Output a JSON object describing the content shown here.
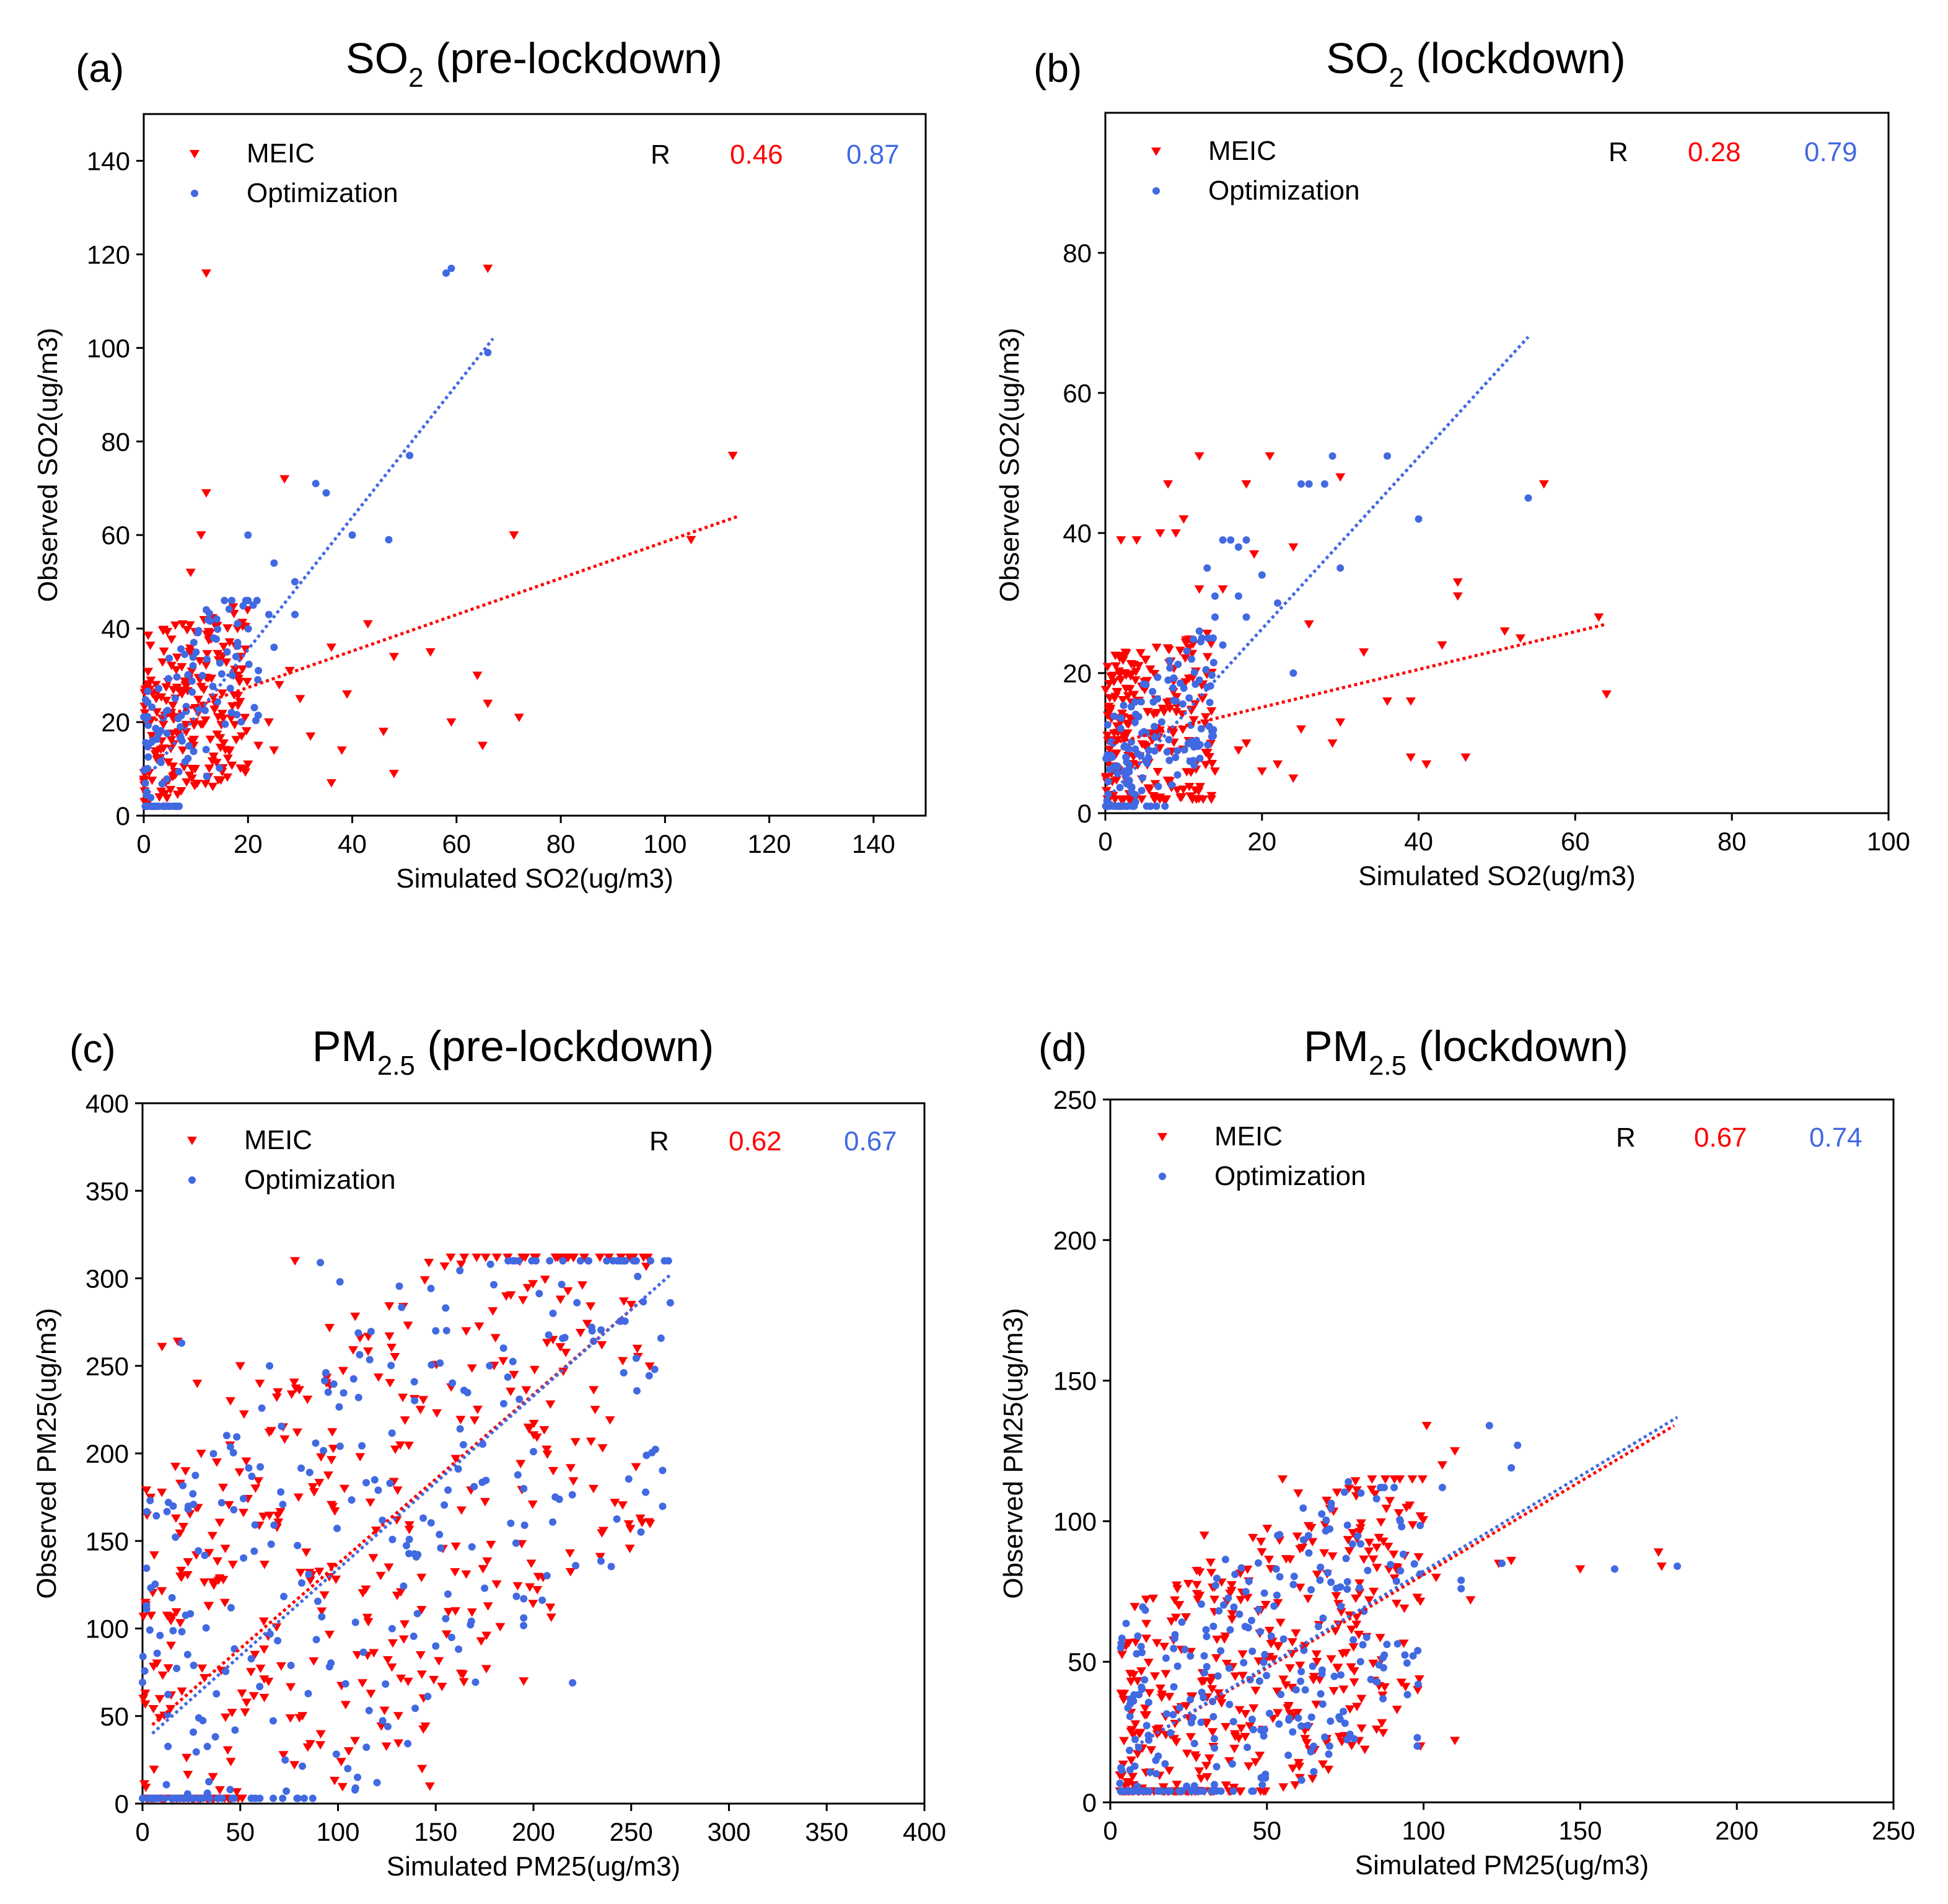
{
  "colors": {
    "meic": "#ff0000",
    "optimization": "#4169e1",
    "axes": "#000000",
    "background": "#ffffff"
  },
  "chart_data": [
    {
      "type": "scatter",
      "panel_label": "(a)",
      "title": {
        "main": "SO",
        "sub": "2",
        "suffix": " (pre-lockdown)"
      },
      "xlabel": "Simulated SO2(ug/m3)",
      "ylabel": "Observed SO2(ug/m3)",
      "xlim": [
        0,
        150
      ],
      "ylim": [
        0,
        150
      ],
      "xticks": [
        0,
        20,
        40,
        60,
        80,
        100,
        120,
        140
      ],
      "yticks": [
        0,
        20,
        40,
        60,
        80,
        100,
        120,
        140
      ],
      "legend_position": "top-left",
      "stats": {
        "label": "R",
        "meic": "0.46",
        "optimization": "0.87"
      },
      "series": [
        {
          "name": "MEIC",
          "marker": "triangle-down",
          "color": "#ff0000",
          "fit": [
            [
              1,
              20
            ],
            [
              114,
              64
            ]
          ],
          "cluster": {
            "x": [
              0,
              20
            ],
            "y": [
              3,
              45
            ],
            "n": 220,
            "seed": 11
          },
          "points": [
            [
              12,
              116
            ],
            [
              66,
              117
            ],
            [
              27,
              72
            ],
            [
              12,
              69
            ],
            [
              11,
              60
            ],
            [
              9,
              52
            ],
            [
              105,
              59
            ],
            [
              113,
              77
            ],
            [
              71,
              60
            ],
            [
              36,
              36
            ],
            [
              28,
              31
            ],
            [
              30,
              25
            ],
            [
              24,
              20
            ],
            [
              32,
              17
            ],
            [
              55,
              35
            ],
            [
              48,
              34
            ],
            [
              43,
              41
            ],
            [
              39,
              26
            ],
            [
              46,
              18
            ],
            [
              59,
              20
            ],
            [
              64,
              30
            ],
            [
              66,
              24
            ],
            [
              65,
              15
            ],
            [
              72,
              21
            ],
            [
              48,
              9
            ],
            [
              36,
              7
            ],
            [
              22,
              15
            ],
            [
              26,
              28
            ],
            [
              18,
              40
            ],
            [
              38,
              14
            ],
            [
              25,
              14
            ],
            [
              20,
              11
            ]
          ]
        },
        {
          "name": "Optimization",
          "marker": "circle",
          "color": "#4169e1",
          "fit": [
            [
              2,
              10
            ],
            [
              67,
              102
            ]
          ],
          "cluster": {
            "x": [
              0,
              22
            ],
            "y": [
              2,
              46
            ],
            "n": 120,
            "seed": 23
          },
          "points": [
            [
              59,
              117
            ],
            [
              58,
              116
            ],
            [
              66,
              99
            ],
            [
              51,
              77
            ],
            [
              33,
              71
            ],
            [
              35,
              69
            ],
            [
              40,
              60
            ],
            [
              47,
              59
            ],
            [
              20,
              60
            ],
            [
              25,
              54
            ],
            [
              29,
              50
            ],
            [
              29,
              43
            ],
            [
              21,
              45
            ],
            [
              20,
              46
            ],
            [
              25,
              36
            ],
            [
              22,
              31
            ],
            [
              18,
              37
            ],
            [
              16,
              35
            ],
            [
              14,
              42
            ],
            [
              12,
              44
            ],
            [
              17,
              30
            ],
            [
              24,
              43
            ]
          ]
        }
      ]
    },
    {
      "type": "scatter",
      "panel_label": "(b)",
      "title": {
        "main": "SO",
        "sub": "2",
        "suffix": " (lockdown)"
      },
      "xlabel": "Simulated SO2(ug/m3)",
      "ylabel": "Observed SO2(ug/m3)",
      "xlim": [
        0,
        100
      ],
      "ylim": [
        0,
        100
      ],
      "xticks": [
        0,
        20,
        40,
        60,
        80,
        100
      ],
      "yticks": [
        0,
        20,
        40,
        60,
        80
      ],
      "legend_position": "top-left",
      "stats": {
        "label": "R",
        "meic": "0.28",
        "optimization": "0.79"
      },
      "series": [
        {
          "name": "MEIC",
          "marker": "triangle-down",
          "color": "#ff0000",
          "fit": [
            [
              1,
              10
            ],
            [
              64,
              27
            ]
          ],
          "cluster": {
            "x": [
              0,
              14
            ],
            "y": [
              2,
              30
            ],
            "n": 230,
            "seed": 37
          },
          "points": [
            [
              21,
              51
            ],
            [
              12,
              51
            ],
            [
              18,
              47
            ],
            [
              8,
              47
            ],
            [
              56,
              47
            ],
            [
              30,
              48
            ],
            [
              2,
              39
            ],
            [
              4,
              39
            ],
            [
              7,
              40
            ],
            [
              9,
              40
            ],
            [
              10,
              42
            ],
            [
              24,
              38
            ],
            [
              19,
              37
            ],
            [
              12,
              32
            ],
            [
              15,
              32
            ],
            [
              45,
              33
            ],
            [
              45,
              31
            ],
            [
              26,
              27
            ],
            [
              33,
              23
            ],
            [
              51,
              26
            ],
            [
              43,
              24
            ],
            [
              53,
              25
            ],
            [
              63,
              28
            ],
            [
              64,
              17
            ],
            [
              36,
              16
            ],
            [
              39,
              16
            ],
            [
              30,
              13
            ],
            [
              29,
              10
            ],
            [
              25,
              12
            ],
            [
              18,
              10
            ],
            [
              22,
              7
            ],
            [
              39,
              8
            ],
            [
              41,
              7
            ],
            [
              46,
              8
            ],
            [
              24,
              5
            ],
            [
              14,
              6
            ],
            [
              20,
              6
            ],
            [
              17,
              9
            ]
          ]
        },
        {
          "name": "Optimization",
          "marker": "circle",
          "color": "#4169e1",
          "fit": [
            [
              1,
              3
            ],
            [
              54,
              68
            ]
          ],
          "cluster": {
            "x": [
              0,
              14
            ],
            "y": [
              1,
              25
            ],
            "n": 150,
            "seed": 41
          },
          "points": [
            [
              36,
              51
            ],
            [
              29,
              51
            ],
            [
              26,
              47
            ],
            [
              25,
              47
            ],
            [
              28,
              47
            ],
            [
              15,
              39
            ],
            [
              16,
              39
            ],
            [
              17,
              38
            ],
            [
              18,
              39
            ],
            [
              40,
              42
            ],
            [
              54,
              45
            ],
            [
              30,
              35
            ],
            [
              20,
              34
            ],
            [
              22,
              30
            ],
            [
              14,
              31
            ],
            [
              13,
              35
            ],
            [
              12,
              26
            ],
            [
              24,
              20
            ],
            [
              18,
              28
            ],
            [
              17,
              31
            ],
            [
              14,
              28
            ],
            [
              11,
              22
            ],
            [
              15,
              24
            ],
            [
              13,
              18
            ],
            [
              12,
              19
            ],
            [
              9,
              16
            ]
          ]
        }
      ]
    },
    {
      "type": "scatter",
      "panel_label": "(c)",
      "title": {
        "main": "PM",
        "sub": "2.5",
        "suffix": " (pre-lockdown)"
      },
      "xlabel": "Simulated PM25(ug/m3)",
      "ylabel": "Observed PM25(ug/m3)",
      "xlim": [
        0,
        400
      ],
      "ylim": [
        0,
        400
      ],
      "xticks": [
        0,
        50,
        100,
        150,
        200,
        250,
        300,
        350,
        400
      ],
      "yticks": [
        0,
        50,
        100,
        150,
        200,
        250,
        300,
        350,
        400
      ],
      "legend_position": "top-left",
      "stats": {
        "label": "R",
        "meic": "0.62",
        "optimization": "0.67"
      },
      "series": [
        {
          "name": "MEIC",
          "marker": "triangle-down",
          "color": "#ff0000",
          "fit": [
            [
              5,
              45
            ],
            [
              255,
              287
            ]
          ],
          "cluster": {
            "x": [
              0,
              260
            ],
            "y": [
              3,
              312
            ],
            "n": 420,
            "seed": 53
          },
          "points": [
            [
              10,
              261
            ],
            [
              18,
              264
            ],
            [
              6,
              142
            ],
            [
              195,
              70
            ],
            [
              147,
              10
            ],
            [
              143,
              20
            ],
            [
              78,
              310
            ],
            [
              163,
              308
            ],
            [
              250,
              285
            ],
            [
              235,
              262
            ],
            [
              30,
              200
            ],
            [
              22,
              190
            ],
            [
              38,
              195
            ],
            [
              50,
              250
            ],
            [
              60,
              240
            ],
            [
              45,
              230
            ],
            [
              28,
              240
            ],
            [
              190,
              245
            ],
            [
              210,
              265
            ]
          ]
        },
        {
          "name": "Optimization",
          "marker": "circle",
          "color": "#4169e1",
          "fit": [
            [
              5,
              40
            ],
            [
              270,
              302
            ]
          ],
          "cluster": {
            "x": [
              0,
              270
            ],
            "y": [
              3,
              310
            ],
            "n": 300,
            "seed": 67
          },
          "points": [
            [
              20,
              263
            ],
            [
              91,
              309
            ],
            [
              101,
              298
            ],
            [
              178,
              308
            ],
            [
              220,
              69
            ],
            [
              270,
              286
            ],
            [
              262,
              248
            ],
            [
              200,
              201
            ],
            [
              195,
              117
            ],
            [
              195,
              106
            ],
            [
              120,
              12
            ],
            [
              110,
              15
            ],
            [
              105,
              20
            ],
            [
              150,
              90
            ],
            [
              175,
              123
            ],
            [
              65,
              250
            ],
            [
              95,
              235
            ],
            [
              150,
              270
            ],
            [
              210,
              280
            ],
            [
              230,
              270
            ]
          ]
        }
      ]
    },
    {
      "type": "scatter",
      "panel_label": "(d)",
      "title": {
        "main": "PM",
        "sub": "2.5",
        "suffix": " (lockdown)"
      },
      "xlabel": "Simulated PM25(ug/m3)",
      "ylabel": "Observed PM25(ug/m3)",
      "xlim": [
        0,
        250
      ],
      "ylim": [
        0,
        250
      ],
      "xticks": [
        0,
        50,
        100,
        150,
        200,
        250
      ],
      "yticks": [
        0,
        50,
        100,
        150,
        200,
        250
      ],
      "legend_position": "top-left",
      "stats": {
        "label": "R",
        "meic": "0.67",
        "optimization": "0.74"
      },
      "series": [
        {
          "name": "MEIC",
          "marker": "triangle-down",
          "color": "#ff0000",
          "fit": [
            [
              8,
              20
            ],
            [
              180,
              134
            ]
          ],
          "cluster": {
            "x": [
              3,
              100
            ],
            "y": [
              4,
              115
            ],
            "n": 420,
            "seed": 79
          },
          "points": [
            [
              101,
              134
            ],
            [
              110,
              125
            ],
            [
              106,
              120
            ],
            [
              124,
              85
            ],
            [
              128,
              86
            ],
            [
              150,
              83
            ],
            [
              175,
              89
            ],
            [
              176,
              84
            ],
            [
              110,
              22
            ],
            [
              99,
              20
            ],
            [
              85,
              26
            ],
            [
              55,
              115
            ],
            [
              60,
              110
            ],
            [
              30,
              95
            ],
            [
              115,
              72
            ],
            [
              104,
              80
            ]
          ]
        },
        {
          "name": "Optimization",
          "marker": "circle",
          "color": "#4169e1",
          "fit": [
            [
              8,
              20
            ],
            [
              181,
              137
            ]
          ],
          "cluster": {
            "x": [
              3,
              100
            ],
            "y": [
              4,
              112
            ],
            "n": 270,
            "seed": 83
          },
          "points": [
            [
              121,
              134
            ],
            [
              130,
              127
            ],
            [
              128,
              119
            ],
            [
              106,
              112
            ],
            [
              161,
              83
            ],
            [
              181,
              84
            ],
            [
              112,
              79
            ],
            [
              112,
              76
            ],
            [
              125,
              85
            ],
            [
              98,
              23
            ],
            [
              98,
              20
            ],
            [
              80,
              110
            ],
            [
              76,
              114
            ],
            [
              85,
              108
            ],
            [
              60,
              30
            ],
            [
              70,
              20
            ]
          ]
        }
      ]
    }
  ]
}
